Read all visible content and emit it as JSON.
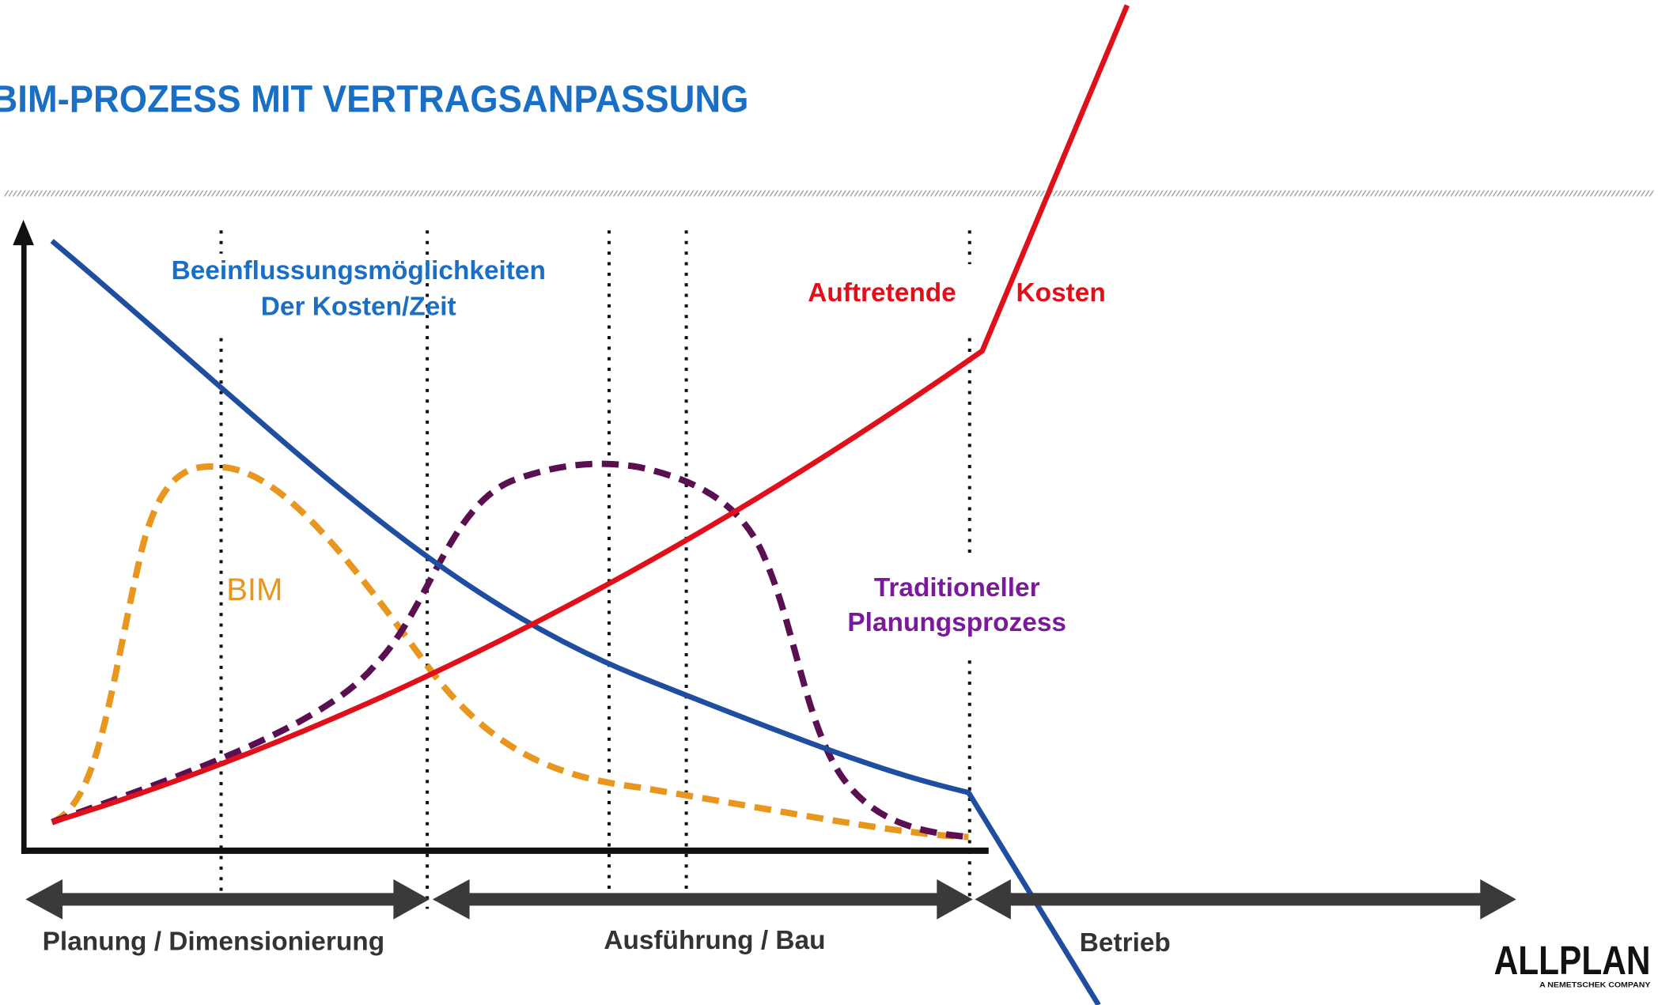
{
  "title": "BIM-PROZESS MIT VERTRAGSANPASSUNG",
  "labels": {
    "influence": [
      "Beeinflussungsmöglichkeiten",
      "Der Kosten/Zeit"
    ],
    "costs": [
      "Auftretende",
      "Kosten"
    ],
    "bim": "BIM",
    "traditional": [
      "Traditioneller",
      "Planungsprozess"
    ]
  },
  "phases": [
    "Planung / Dimensionierung",
    "Ausführung / Bau",
    "Betrieb"
  ],
  "logo": {
    "name": "ALLPLAN",
    "tagline": "A NEMETSCHEK COMPANY"
  }
}
